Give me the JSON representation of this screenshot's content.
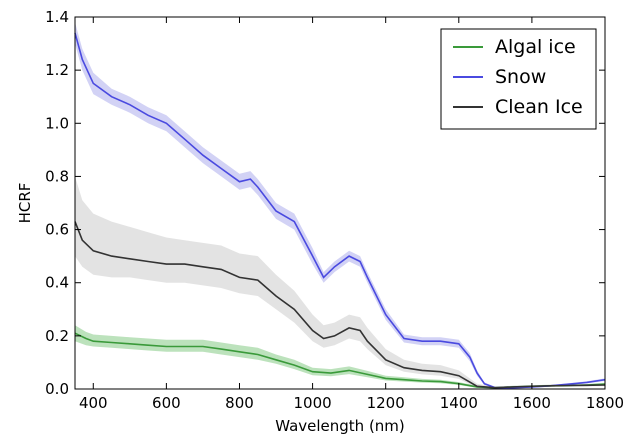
{
  "chart_data": {
    "type": "line",
    "xlabel": "Wavelength (nm)",
    "ylabel": "HCRF",
    "xlim": [
      350,
      1800
    ],
    "ylim": [
      0.0,
      1.4
    ],
    "xticks": [
      400,
      600,
      800,
      1000,
      1200,
      1400,
      1600,
      1800
    ],
    "yticks": [
      0.0,
      0.2,
      0.4,
      0.6,
      0.8,
      1.0,
      1.2,
      1.4
    ],
    "xtick_labels": [
      "400",
      "600",
      "800",
      "1000",
      "1200",
      "1400",
      "1600",
      "1800"
    ],
    "ytick_labels": [
      "0.0",
      "0.2",
      "0.4",
      "0.6",
      "0.8",
      "1.0",
      "1.2",
      "1.4"
    ],
    "grid": false,
    "legend_position": "top-right",
    "series": [
      {
        "name": "Algal ice",
        "color": "#3a9a3a",
        "band_color": "#a6d8a6",
        "x": [
          350,
          380,
          400,
          450,
          500,
          550,
          600,
          650,
          700,
          750,
          800,
          850,
          900,
          950,
          1000,
          1050,
          1100,
          1150,
          1200,
          1250,
          1300,
          1350,
          1400,
          1450,
          1500,
          1550,
          1600,
          1650,
          1700,
          1750,
          1800
        ],
        "y": [
          0.21,
          0.19,
          0.18,
          0.175,
          0.17,
          0.165,
          0.16,
          0.16,
          0.16,
          0.15,
          0.14,
          0.13,
          0.11,
          0.09,
          0.065,
          0.06,
          0.07,
          0.055,
          0.04,
          0.035,
          0.03,
          0.028,
          0.02,
          0.008,
          0.005,
          0.008,
          0.01,
          0.012,
          0.013,
          0.015,
          0.018
        ],
        "y_low": [
          0.18,
          0.165,
          0.16,
          0.155,
          0.15,
          0.145,
          0.14,
          0.14,
          0.14,
          0.13,
          0.12,
          0.11,
          0.095,
          0.075,
          0.052,
          0.048,
          0.056,
          0.044,
          0.032,
          0.028,
          0.024,
          0.022,
          0.015,
          0.004,
          0.002,
          0.004,
          0.006,
          0.008,
          0.009,
          0.011,
          0.013
        ],
        "y_high": [
          0.24,
          0.215,
          0.205,
          0.2,
          0.195,
          0.19,
          0.185,
          0.185,
          0.185,
          0.175,
          0.165,
          0.155,
          0.13,
          0.11,
          0.08,
          0.075,
          0.085,
          0.068,
          0.05,
          0.044,
          0.038,
          0.035,
          0.026,
          0.012,
          0.008,
          0.012,
          0.014,
          0.016,
          0.017,
          0.019,
          0.023
        ]
      },
      {
        "name": "Snow",
        "color": "#4a4ae0",
        "band_color": "#c3c3f2",
        "x": [
          350,
          370,
          400,
          450,
          500,
          550,
          600,
          650,
          700,
          750,
          800,
          830,
          850,
          900,
          950,
          1000,
          1030,
          1060,
          1100,
          1130,
          1150,
          1200,
          1250,
          1300,
          1350,
          1400,
          1430,
          1450,
          1470,
          1500,
          1550,
          1600,
          1650,
          1700,
          1750,
          1800
        ],
        "y": [
          1.34,
          1.24,
          1.15,
          1.1,
          1.07,
          1.03,
          1.0,
          0.94,
          0.88,
          0.83,
          0.78,
          0.79,
          0.76,
          0.67,
          0.63,
          0.5,
          0.42,
          0.46,
          0.5,
          0.48,
          0.42,
          0.28,
          0.19,
          0.18,
          0.18,
          0.17,
          0.12,
          0.06,
          0.02,
          0.005,
          0.005,
          0.008,
          0.012,
          0.018,
          0.025,
          0.035
        ],
        "y_low": [
          1.3,
          1.2,
          1.11,
          1.07,
          1.04,
          1.0,
          0.97,
          0.91,
          0.85,
          0.8,
          0.75,
          0.76,
          0.73,
          0.64,
          0.6,
          0.47,
          0.4,
          0.44,
          0.48,
          0.46,
          0.4,
          0.26,
          0.175,
          0.165,
          0.165,
          0.155,
          0.105,
          0.05,
          0.015,
          0.002,
          0.002,
          0.005,
          0.009,
          0.014,
          0.021,
          0.03
        ],
        "y_high": [
          1.38,
          1.28,
          1.19,
          1.13,
          1.1,
          1.06,
          1.03,
          0.97,
          0.91,
          0.86,
          0.81,
          0.82,
          0.79,
          0.7,
          0.66,
          0.53,
          0.44,
          0.48,
          0.52,
          0.5,
          0.44,
          0.3,
          0.205,
          0.195,
          0.195,
          0.185,
          0.135,
          0.07,
          0.025,
          0.008,
          0.008,
          0.011,
          0.015,
          0.022,
          0.029,
          0.04
        ]
      },
      {
        "name": "Clean Ice",
        "color": "#333333",
        "band_color": "#d9d9d9",
        "x": [
          350,
          370,
          400,
          450,
          500,
          550,
          600,
          650,
          700,
          750,
          800,
          850,
          900,
          950,
          1000,
          1030,
          1060,
          1100,
          1130,
          1150,
          1200,
          1250,
          1300,
          1350,
          1400,
          1450,
          1500,
          1550,
          1600,
          1650,
          1700,
          1750,
          1800
        ],
        "y": [
          0.63,
          0.56,
          0.52,
          0.5,
          0.49,
          0.48,
          0.47,
          0.47,
          0.46,
          0.45,
          0.42,
          0.41,
          0.35,
          0.3,
          0.22,
          0.19,
          0.2,
          0.23,
          0.22,
          0.18,
          0.11,
          0.08,
          0.07,
          0.065,
          0.05,
          0.01,
          0.005,
          0.008,
          0.01,
          0.012,
          0.013,
          0.014,
          0.015
        ],
        "y_low": [
          0.5,
          0.46,
          0.43,
          0.42,
          0.42,
          0.41,
          0.4,
          0.4,
          0.39,
          0.38,
          0.36,
          0.35,
          0.3,
          0.25,
          0.18,
          0.155,
          0.165,
          0.19,
          0.18,
          0.15,
          0.09,
          0.065,
          0.055,
          0.05,
          0.038,
          0.005,
          0.002,
          0.004,
          0.006,
          0.008,
          0.009,
          0.01,
          0.011
        ],
        "y_high": [
          0.8,
          0.71,
          0.66,
          0.63,
          0.61,
          0.59,
          0.57,
          0.56,
          0.55,
          0.54,
          0.51,
          0.5,
          0.43,
          0.37,
          0.28,
          0.24,
          0.25,
          0.28,
          0.27,
          0.23,
          0.15,
          0.11,
          0.095,
          0.09,
          0.07,
          0.02,
          0.009,
          0.012,
          0.014,
          0.016,
          0.017,
          0.018,
          0.019
        ]
      }
    ]
  }
}
